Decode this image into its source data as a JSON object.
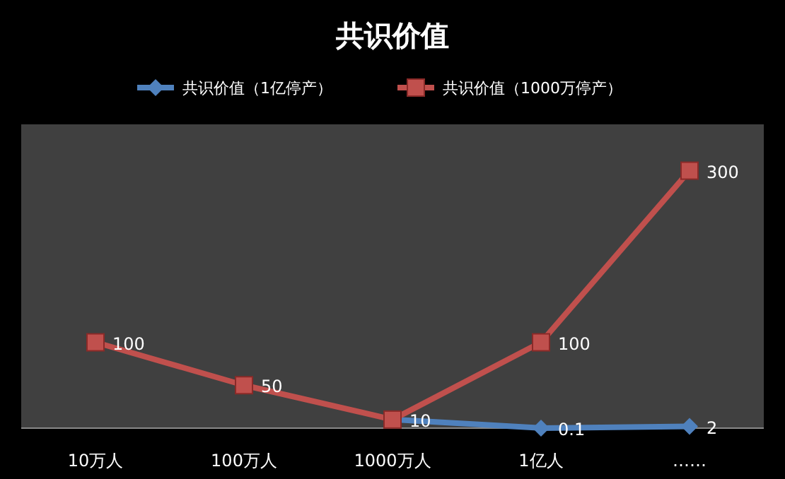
{
  "chart_data": {
    "type": "line",
    "title": "共识价值",
    "categories": [
      "10万人",
      "100万人",
      "1000万人",
      "1亿人",
      "……"
    ],
    "legend": "top",
    "series": [
      {
        "name": "共识价值（1亿停产）",
        "color": "#4f81bd",
        "marker": "diamond",
        "values": [
          null,
          null,
          10,
          0.1,
          2
        ],
        "value_labels": [
          null,
          null,
          null,
          "0.1",
          "2"
        ]
      },
      {
        "name": "共识价值（1000万停产）",
        "color": "#c0504d",
        "marker": "square",
        "values": [
          100,
          50,
          10,
          100,
          300
        ],
        "value_labels": [
          "100",
          "50",
          "10",
          "100",
          "300"
        ]
      }
    ]
  }
}
